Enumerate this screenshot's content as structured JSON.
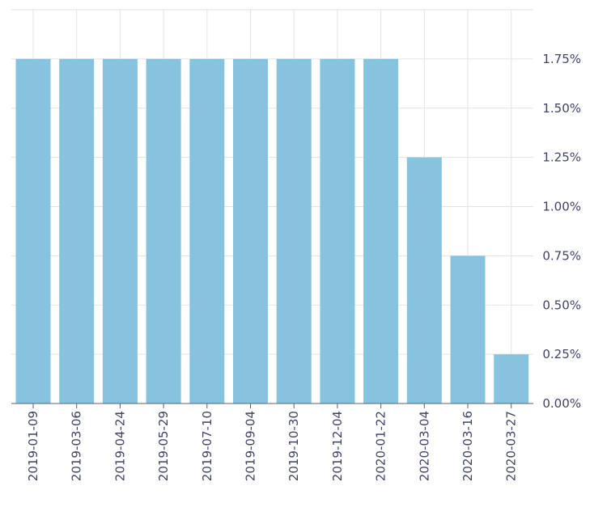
{
  "chart_data": {
    "type": "bar",
    "categories": [
      "2019-01-09",
      "2019-03-06",
      "2019-04-24",
      "2019-05-29",
      "2019-07-10",
      "2019-09-04",
      "2019-10-30",
      "2019-12-04",
      "2020-01-22",
      "2020-03-04",
      "2020-03-16",
      "2020-03-27"
    ],
    "values": [
      1.75,
      1.75,
      1.75,
      1.75,
      1.75,
      1.75,
      1.75,
      1.75,
      1.75,
      1.25,
      0.75,
      0.25
    ],
    "title": "",
    "xlabel": "",
    "ylabel": "",
    "ylim": [
      0,
      2.0
    ],
    "yticks": [
      0,
      0.25,
      0.5,
      0.75,
      1.0,
      1.25,
      1.5,
      1.75
    ],
    "ytick_labels": [
      "0.00%",
      "0.25%",
      "0.50%",
      "0.75%",
      "1.00%",
      "1.25%",
      "1.50%",
      "1.75%"
    ],
    "y_axis_side": "right",
    "grid": true,
    "bar_color": "#86c3df"
  }
}
